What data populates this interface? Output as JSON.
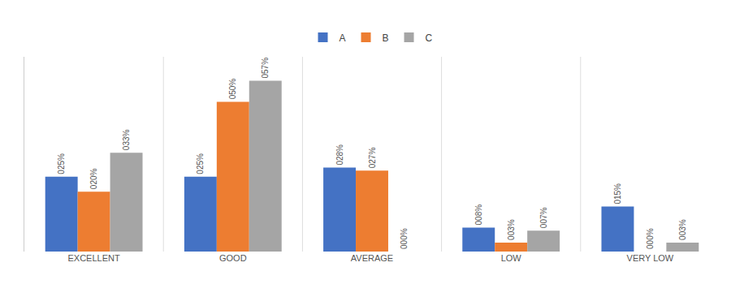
{
  "chart_data": {
    "type": "bar",
    "categories": [
      "EXCELLENT",
      "GOOD",
      "AVERAGE",
      "LOW",
      "VERY LOW"
    ],
    "series": [
      {
        "name": "A",
        "color": "#4472C4",
        "values": [
          25,
          25,
          28,
          8,
          15
        ],
        "value_labels": [
          "025%",
          "025%",
          "028%",
          "008%",
          "015%"
        ]
      },
      {
        "name": "B",
        "color": "#ED7D31",
        "values": [
          20,
          50,
          27,
          3,
          0
        ],
        "value_labels": [
          "020%",
          "050%",
          "027%",
          "003%",
          "000%"
        ]
      },
      {
        "name": "C",
        "color": "#A5A5A5",
        "values": [
          33,
          57,
          0,
          7,
          3
        ],
        "value_labels": [
          "033%",
          "057%",
          "000%",
          "007%",
          "003%"
        ]
      }
    ],
    "ylim": [
      0,
      65
    ],
    "tick_labels": "x",
    "grid": false,
    "legend": "top",
    "data_labels": true
  }
}
